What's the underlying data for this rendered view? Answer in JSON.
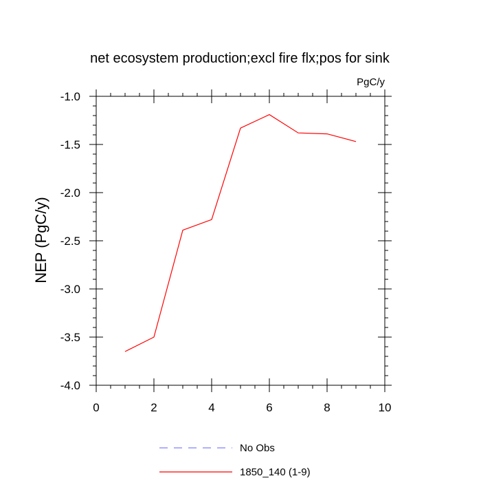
{
  "chart_data": {
    "type": "line",
    "title": "net ecosystem production;excl fire flx;pos for sink",
    "units_label": "PgC/y",
    "xlabel": "",
    "ylabel": "NEP  (PgC/y)",
    "xlim": [
      0,
      10
    ],
    "ylim": [
      -4.0,
      -1.0
    ],
    "x_ticks": [
      0,
      2,
      4,
      6,
      8,
      10
    ],
    "x_tick_labels": [
      "0",
      "2",
      "4",
      "6",
      "8",
      "10"
    ],
    "y_ticks": [
      -4.0,
      -3.5,
      -3.0,
      -2.5,
      -2.0,
      -1.5,
      -1.0
    ],
    "y_tick_labels": [
      "-4.0",
      "-3.5",
      "-3.0",
      "-2.5",
      "-2.0",
      "-1.5",
      "-1.0"
    ],
    "x_minor_step": 0.5,
    "y_minor_step": 0.1,
    "grid": false,
    "legend_position": "bottom",
    "series": [
      {
        "name": "1850_140 (1-9)",
        "color": "#ff0000",
        "dash": "solid",
        "x": [
          1,
          2,
          3,
          4,
          5,
          6,
          7,
          8,
          9
        ],
        "values": [
          -3.65,
          -3.5,
          -2.39,
          -2.28,
          -1.33,
          -1.19,
          -1.38,
          -1.39,
          -1.47
        ]
      }
    ],
    "legend": [
      {
        "label": "No Obs",
        "color": "#8080ff",
        "dash": "dashed"
      },
      {
        "label": "1850_140 (1-9)",
        "color": "#ff0000",
        "dash": "solid"
      }
    ]
  }
}
